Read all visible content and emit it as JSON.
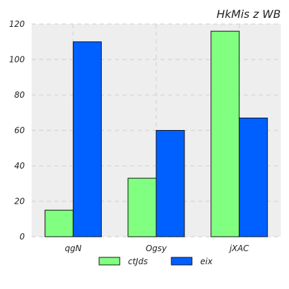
{
  "chart_data": {
    "type": "bar",
    "title": "HkMis z WB",
    "xlabel": "",
    "ylabel": "",
    "categories": [
      "qgN",
      "Ogsy",
      "jXAC"
    ],
    "series": [
      {
        "name": "ctJds",
        "values": [
          15,
          33,
          116
        ],
        "color": "#80ff80"
      },
      {
        "name": "eix",
        "values": [
          110,
          60,
          67
        ],
        "color": "#0060ff"
      }
    ],
    "ylim": [
      0,
      120
    ],
    "yticks": [
      0,
      20,
      40,
      60,
      80,
      100,
      120
    ],
    "grid": true,
    "legend": "bottom-center",
    "background": "#eeeeee"
  }
}
